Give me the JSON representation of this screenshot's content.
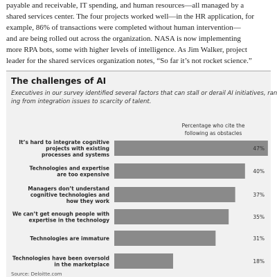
{
  "article": {
    "lines": [
      "payable and receivable, IT spending, and human resources—all managed by a",
      "shared services center. The four projects worked well—in the HR application, for",
      "example, 86% of transactions were completed without human intervention—",
      "and are being rolled out across the organization. NASA is now implementing",
      "more RPA bots, some with higher levels of intelligence. As Jim Walker, project",
      "leader for the shared services organization notes, “So far it’s not rocket science.”"
    ]
  },
  "chart_data": {
    "type": "bar",
    "orientation": "horizontal",
    "title": "The challenges of AI",
    "subtitle_lines": [
      "Executives in our survey identified several factors that can stall or derail AI initiatives, rang-",
      "ing from integration issues to scarcity of talent."
    ],
    "value_header_lines": [
      "Percentage who cite the",
      "following as obstacles"
    ],
    "categories": [
      [
        "It’s hard to integrate cognitive",
        "projects with existing",
        "processes and systems"
      ],
      [
        "Technologies and expertise",
        "are too expensive"
      ],
      [
        "Managers don’t understand",
        "cognitive technologies and",
        "how they work"
      ],
      [
        "We can’t get enough people with",
        "expertise in the technology"
      ],
      [
        "Technologies are immature"
      ],
      [
        "Technologies have been oversold",
        "in the marketplace"
      ]
    ],
    "values": [
      47,
      40,
      37,
      35,
      31,
      18
    ],
    "value_labels": [
      "47%",
      "40%",
      "37%",
      "35%",
      "31%",
      "18%"
    ],
    "bar_color": "#8a8a8a",
    "xlim": [
      0,
      50
    ],
    "grid": false,
    "source": "Source: Deloitte.com"
  }
}
